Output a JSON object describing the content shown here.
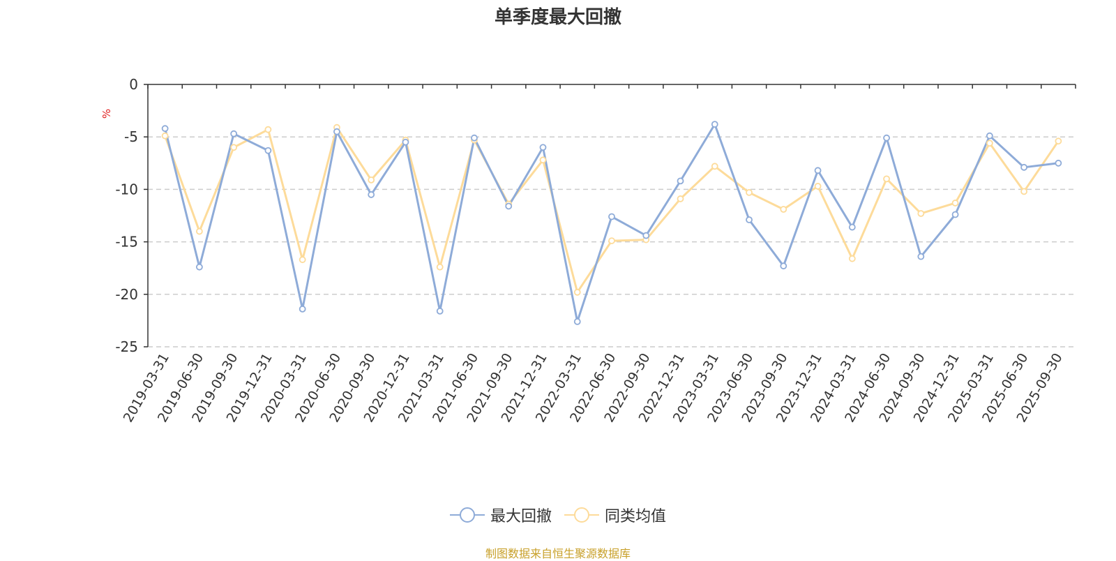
{
  "chart_data": {
    "type": "line",
    "title": "单季度最大回撤",
    "ylabel": "%",
    "xlabel": "",
    "ylim": [
      -25,
      0
    ],
    "yticks": [
      0,
      -5,
      -10,
      -15,
      -20,
      -25
    ],
    "grid": true,
    "legend_position": "bottom",
    "categories": [
      "2019-03-31",
      "2019-06-30",
      "2019-09-30",
      "2019-12-31",
      "2020-03-31",
      "2020-06-30",
      "2020-09-30",
      "2020-12-31",
      "2021-03-31",
      "2021-06-30",
      "2021-09-30",
      "2021-12-31",
      "2022-03-31",
      "2022-06-30",
      "2022-09-30",
      "2022-12-31",
      "2023-03-31",
      "2023-06-30",
      "2023-09-30",
      "2023-12-31",
      "2024-03-31",
      "2024-06-30",
      "2024-09-30",
      "2024-12-31",
      "2025-03-31",
      "2025-06-30",
      "2025-09-30"
    ],
    "series": [
      {
        "name": "最大回撤",
        "color": "#8eabd8",
        "values": [
          -4.2,
          -17.4,
          -4.7,
          -6.3,
          -21.4,
          -4.5,
          -10.5,
          -5.5,
          -21.6,
          -5.1,
          -11.6,
          -6.0,
          -22.6,
          -12.6,
          -14.4,
          -9.2,
          -3.8,
          -12.9,
          -17.3,
          -8.2,
          -13.6,
          -5.1,
          -16.4,
          -12.4,
          -4.9,
          -7.9,
          -7.5
        ]
      },
      {
        "name": "同类均值",
        "color": "#fddb9a",
        "values": [
          -4.9,
          -14.0,
          -6.0,
          -4.3,
          -16.7,
          -4.1,
          -9.1,
          -5.3,
          -17.4,
          -5.3,
          -11.4,
          -7.2,
          -19.8,
          -14.9,
          -14.8,
          -10.9,
          -7.8,
          -10.3,
          -11.9,
          -9.7,
          -16.6,
          -9.0,
          -12.3,
          -11.3,
          -5.6,
          -10.2,
          -5.4
        ]
      }
    ],
    "source": "制图数据来自恒生聚源数据库",
    "source_color": "#c8a02a",
    "unit_color": "#e02020",
    "axis_color": "#333333",
    "grid_color": "#cccccc"
  }
}
